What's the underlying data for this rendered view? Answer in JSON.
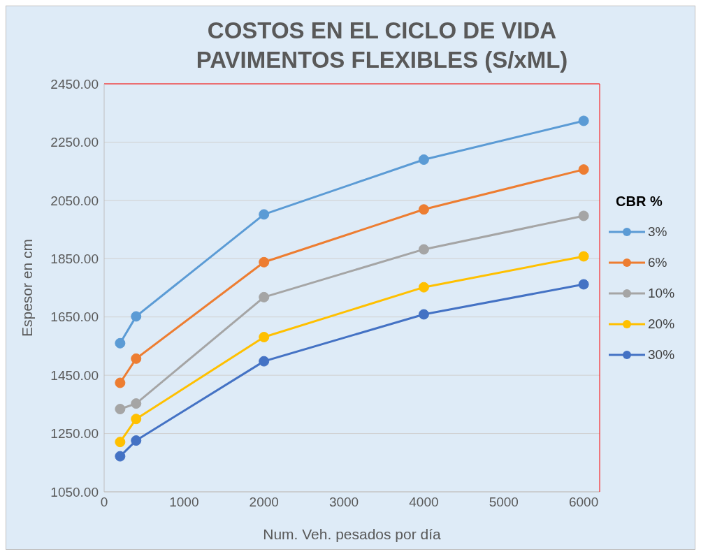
{
  "chart_data": {
    "type": "line",
    "title": "COSTOS EN EL CICLO DE VIDA\nPAVIMENTOS FLEXIBLES (S/xML)",
    "xlabel": "Num. Veh. pesados por día",
    "ylabel": "Espesor en cm",
    "legend_title": "CBR %",
    "x": [
      200,
      400,
      2000,
      4000,
      6000
    ],
    "series": [
      {
        "name": "3%",
        "color": "#5b9bd5",
        "values": [
          1560,
          1652,
          2002,
          2190,
          2323
        ]
      },
      {
        "name": "6%",
        "color": "#ed7d31",
        "values": [
          1424,
          1507,
          1838,
          2019,
          2156
        ]
      },
      {
        "name": "10%",
        "color": "#a5a5a5",
        "values": [
          1334,
          1353,
          1718,
          1882,
          1997
        ]
      },
      {
        "name": "20%",
        "color": "#ffc000",
        "values": [
          1221,
          1300,
          1581,
          1752,
          1858
        ]
      },
      {
        "name": "30%",
        "color": "#4472c4",
        "values": [
          1172,
          1226,
          1498,
          1659,
          1762
        ]
      }
    ],
    "xlim": [
      0,
      6200
    ],
    "xticks": [
      0,
      1000,
      2000,
      3000,
      4000,
      5000,
      6000
    ],
    "ylim": [
      1050,
      2450
    ],
    "yticks": [
      {
        "value": 1050,
        "label": "1050.00"
      },
      {
        "value": 1250,
        "label": "1250.00"
      },
      {
        "value": 1450,
        "label": "1450.00"
      },
      {
        "value": 1650,
        "label": "1650.00"
      },
      {
        "value": 1850,
        "label": "1850.00"
      },
      {
        "value": 2050,
        "label": "2050.00"
      },
      {
        "value": 2250,
        "label": "2250.00"
      },
      {
        "value": 2450,
        "label": "2450.00"
      }
    ],
    "grid": "y",
    "legend": "right",
    "marker": "circle",
    "line_style": "solid"
  }
}
